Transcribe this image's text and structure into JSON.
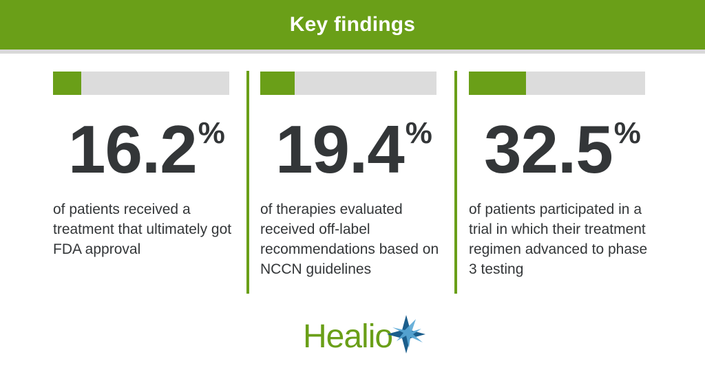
{
  "header": {
    "title": "Key findings"
  },
  "stats": [
    {
      "value": "16.2",
      "unit": "%",
      "fraction": 0.162,
      "description": "of patients received a treatment that ultimately got FDA approval"
    },
    {
      "value": "19.4",
      "unit": "%",
      "fraction": 0.194,
      "description": "of therapies evaluated received off-label recommendations based on NCCN guidelines"
    },
    {
      "value": "32.5",
      "unit": "%",
      "fraction": 0.325,
      "description": "of patients participated in a trial in which their treatment regimen advanced to phase 3 testing"
    }
  ],
  "logo": {
    "text": "Healio"
  },
  "colors": {
    "accent": "#6a9f18",
    "track": "#dcdcdc",
    "text": "#333638",
    "logo_star_dark": "#1b5e8c",
    "logo_star_light": "#5aa9d6"
  }
}
